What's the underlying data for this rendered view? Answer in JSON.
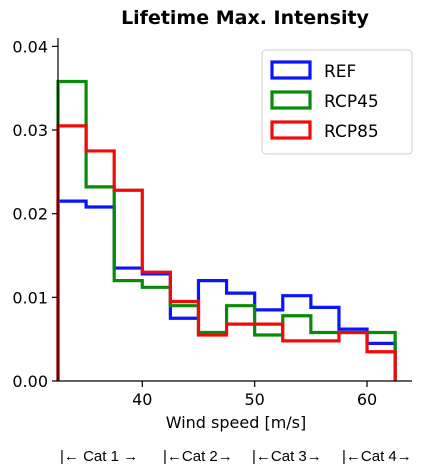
{
  "chart_data": {
    "type": "histogram-step",
    "title": "Lifetime Max. Intensity",
    "xlabel": "Wind speed [m/s]",
    "ylabel": "",
    "xlim": [
      32.5,
      64
    ],
    "ylim": [
      0,
      0.041
    ],
    "xticks": [
      40,
      50,
      60
    ],
    "xtick_labels": [
      "40",
      "50",
      "60"
    ],
    "yticks": [
      0.0,
      0.01,
      0.02,
      0.03,
      0.04
    ],
    "ytick_labels": [
      "0.00",
      "0.01",
      "0.02",
      "0.03",
      "0.04"
    ],
    "bin_edges": [
      32.5,
      35,
      37.5,
      40,
      42.5,
      45,
      47.5,
      50,
      52.5,
      55,
      57.5,
      60,
      62.5
    ],
    "legend_position": "top-right",
    "series": [
      {
        "name": "REF",
        "color": "#0a14ff",
        "values": [
          0.0215,
          0.0208,
          0.0135,
          0.0128,
          0.0075,
          0.012,
          0.0105,
          0.0085,
          0.0102,
          0.0088,
          0.0062,
          0.0045
        ]
      },
      {
        "name": "RCP45",
        "color": "#0a8a0a",
        "values": [
          0.0358,
          0.0232,
          0.012,
          0.0112,
          0.009,
          0.0058,
          0.009,
          0.0055,
          0.0078,
          0.0058,
          0.0058,
          0.0058
        ]
      },
      {
        "name": "RCP85",
        "color": "#f00a0a",
        "values": [
          0.0305,
          0.0275,
          0.0228,
          0.013,
          0.0095,
          0.0055,
          0.0068,
          0.0068,
          0.0048,
          0.0048,
          0.0058,
          0.0035
        ]
      }
    ]
  },
  "category_row": [
    "|←  Cat 1 →",
    "|←Cat 2→",
    "|←Cat 3→",
    "|←Cat 4→"
  ]
}
